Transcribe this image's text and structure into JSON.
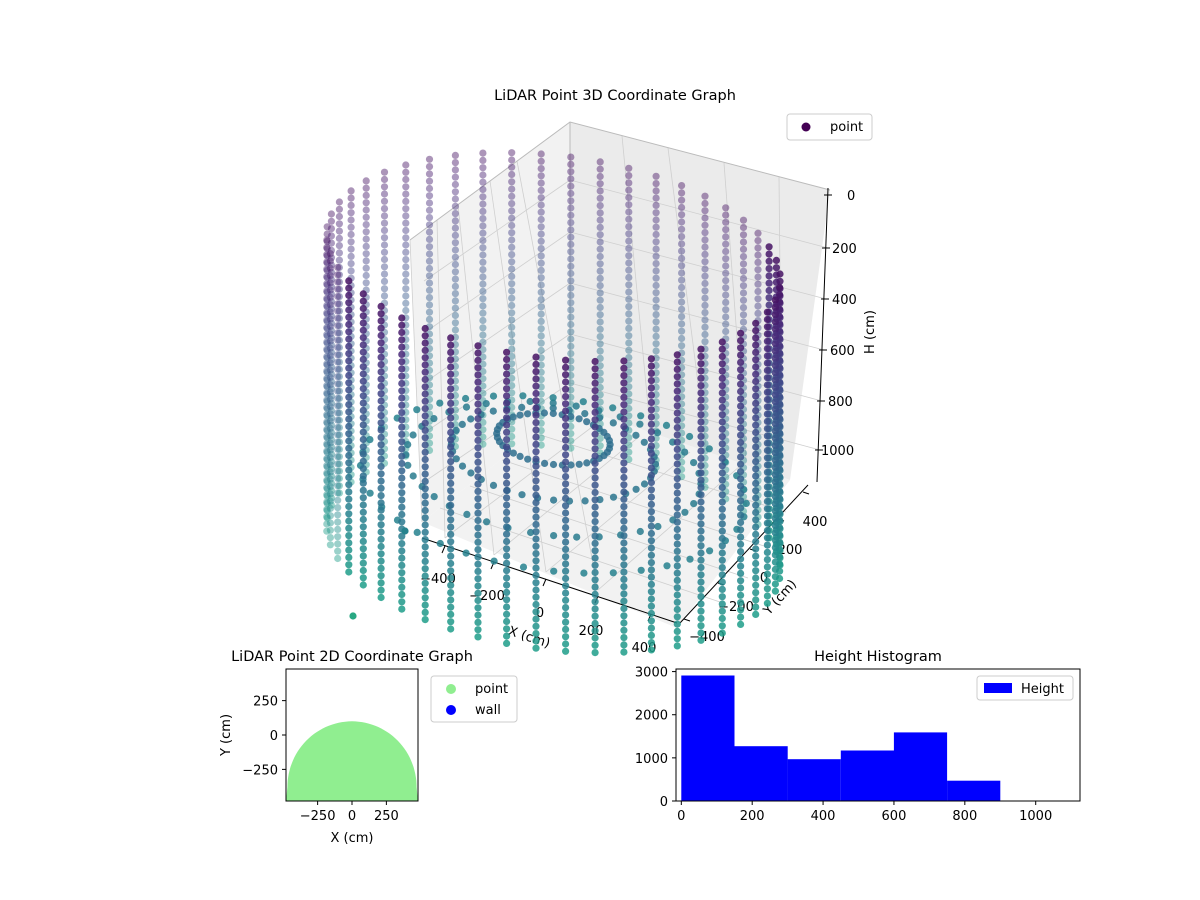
{
  "chart_data": [
    {
      "type": "scatter",
      "projection": "3d",
      "title": "LiDAR Point 3D Coordinate Graph",
      "xlabel": "X (cm)",
      "ylabel": "Y (cm)",
      "zlabel": "H (cm)",
      "x_ticks": [
        "−400",
        "−200",
        "0",
        "200",
        "400"
      ],
      "y_ticks": [
        "−400",
        "−200",
        "0",
        "200",
        "400"
      ],
      "z_ticks": [
        "0",
        "200",
        "400",
        "600",
        "800",
        "1000"
      ],
      "z_inverted": true,
      "xlim": [
        -480,
        480
      ],
      "ylim": [
        -480,
        480
      ],
      "zlim": [
        0,
        1100
      ],
      "legend": [
        {
          "label": "point",
          "color": "#440154"
        }
      ],
      "legend_position": "upper-right",
      "colormap": "viridis",
      "series": [
        {
          "name": "point",
          "shape": "cylindrical wall of LiDAR scan columns around the origin",
          "radius": 470,
          "angle_range_deg": [
            0,
            360
          ],
          "columns": 48,
          "height_range": [
            0,
            1000
          ],
          "color_by": "height"
        }
      ]
    },
    {
      "type": "scatter",
      "title": "LiDAR Point 2D Coordinate Graph",
      "xlabel": "X (cm)",
      "ylabel": "Y (cm)",
      "x_ticks": [
        -250,
        0,
        250
      ],
      "y_ticks": [
        -250,
        0,
        250
      ],
      "x_tick_labels": [
        "−250",
        "0",
        "250"
      ],
      "y_tick_labels": [
        "−250",
        "0",
        "250"
      ],
      "xlim": [
        -480,
        480
      ],
      "ylim": [
        -480,
        480
      ],
      "grid": false,
      "legend": [
        {
          "label": "point",
          "color": "#90ee90"
        },
        {
          "label": "wall",
          "color": "#0000ff"
        }
      ],
      "legend_position": "outside-right",
      "series": [
        {
          "name": "point",
          "color": "#90ee90",
          "region": "filled half-disc, radius 470 cm, y ≤ 100 cm"
        },
        {
          "name": "wall",
          "color": "#0000ff",
          "points": []
        }
      ]
    },
    {
      "type": "bar",
      "subtype": "histogram",
      "title": "Height Histogram",
      "bin_edges": [
        0,
        150,
        300,
        450,
        600,
        750,
        900
      ],
      "counts": [
        2910,
        1270,
        970,
        1170,
        1590,
        470
      ],
      "x_ticks": [
        "0",
        "200",
        "400",
        "600",
        "800",
        "1000"
      ],
      "y_ticks": [
        "0",
        "1000",
        "2000",
        "3000"
      ],
      "xlim": [
        -15,
        1125
      ],
      "ylim": [
        0,
        3060
      ],
      "color": "#0000ff",
      "legend": [
        {
          "label": "Height",
          "color": "#0000ff"
        }
      ],
      "legend_position": "upper-right"
    }
  ]
}
